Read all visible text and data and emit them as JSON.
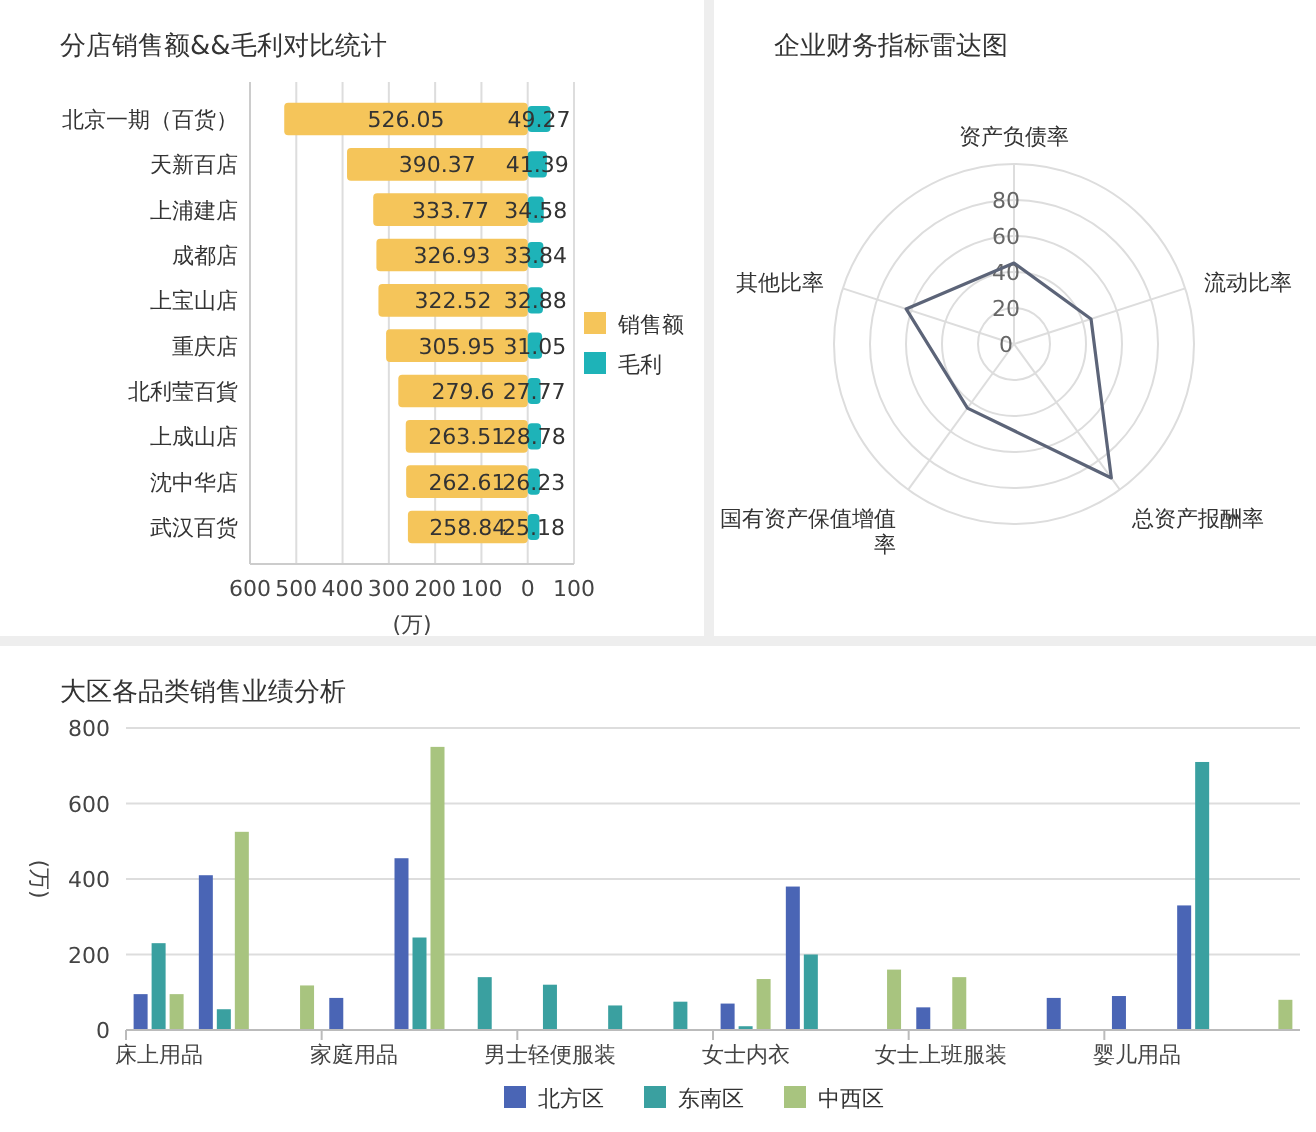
{
  "chart_data": [
    {
      "type": "bar",
      "title": "分店销售额&&毛利对比统计",
      "orientation": "horizontal",
      "xlabel": "(万)",
      "grid": "x",
      "legend": "right",
      "categories": [
        "北京一期（百货）",
        "天新百店",
        "上浦建店",
        "成都店",
        "上宝山店",
        "重庆店",
        "北利莹百貨",
        "上成山店",
        "沈中华店",
        "武汉百货"
      ],
      "xlim": [
        -600,
        100
      ],
      "xticks": [
        0,
        100
      ],
      "x2lim": [
        600,
        -100
      ],
      "x2ticks": [
        600,
        500,
        400,
        300,
        200,
        100
      ],
      "series": [
        {
          "name": "销售额",
          "color": "#f5c55a",
          "axis": "x2",
          "values": [
            526.05,
            390.37,
            333.77,
            326.93,
            322.52,
            305.95,
            279.6,
            263.51,
            262.61,
            258.84
          ],
          "value_labels": [
            "526.05",
            "390.37",
            "333.77",
            "326.93",
            "322.52",
            "305.95",
            "279.6",
            "263.51",
            "262.61",
            "258.84"
          ]
        },
        {
          "name": "毛利",
          "color": "#1eb3b8",
          "values": [
            49.27,
            41.39,
            34.58,
            33.84,
            32.88,
            31.05,
            27.77,
            28.78,
            26.23,
            25.18
          ],
          "value_labels": [
            "49.27",
            "41.39",
            "34.58",
            "33.84",
            "32.88",
            "31.05",
            "27.77",
            "28.78",
            "26.23",
            "25.18"
          ]
        }
      ]
    },
    {
      "type": "radar",
      "title": "企业财务指标雷达图",
      "categories": [
        "资产负债率",
        "流动比率",
        "总资产报酬率",
        "国有资产保值增值率",
        "其他比率"
      ],
      "ylim": [
        0,
        100
      ],
      "yticks": [
        0,
        20,
        40,
        60,
        80
      ],
      "series": [
        {
          "color": "#5c6478",
          "values": [
            45,
            45,
            92,
            44,
            63
          ]
        }
      ]
    },
    {
      "type": "bar",
      "title": "大区各品类销售业绩分析",
      "ylabel": "(万)",
      "grid": "y",
      "legend": "bottom",
      "categories": [
        "床上用品",
        null,
        null,
        "家庭用品",
        null,
        null,
        "男士轻便服装",
        null,
        null,
        "女士内衣",
        null,
        null,
        "女士上班服装",
        null,
        null,
        "婴儿用品",
        null,
        null
      ],
      "ylim": [
        0,
        800
      ],
      "yticks": [
        0,
        200,
        400,
        600,
        800
      ],
      "series": [
        {
          "name": "北方区",
          "color": "#4a65b5",
          "values": [
            95,
            410,
            null,
            85,
            455,
            null,
            null,
            null,
            null,
            70,
            380,
            null,
            60,
            null,
            85,
            90,
            330,
            null
          ]
        },
        {
          "name": "东南区",
          "color": "#3aa0a0",
          "values": [
            230,
            55,
            null,
            null,
            245,
            140,
            120,
            65,
            75,
            10,
            200,
            null,
            null,
            null,
            null,
            null,
            710,
            null
          ]
        },
        {
          "name": "中西区",
          "color": "#a8c47f",
          "values": [
            95,
            525,
            118,
            null,
            750,
            null,
            null,
            null,
            null,
            135,
            null,
            160,
            140,
            null,
            null,
            null,
            null,
            80
          ]
        }
      ]
    }
  ]
}
